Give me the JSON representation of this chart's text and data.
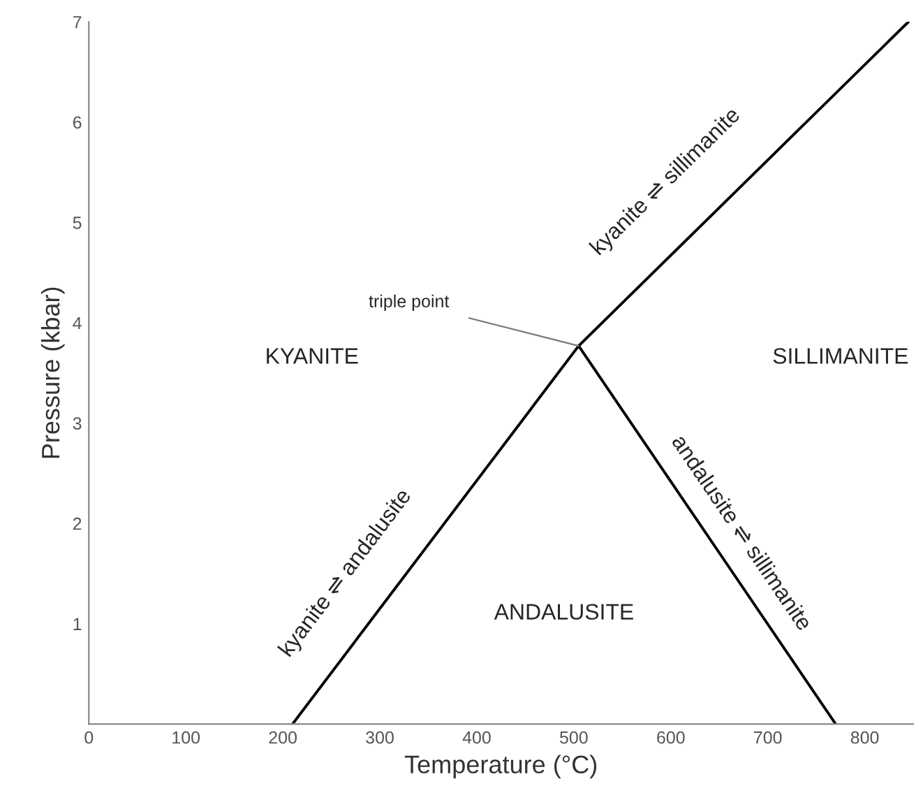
{
  "chart_data": {
    "type": "line",
    "xlabel": "Temperature (°C)",
    "ylabel": "Pressure (kbar)",
    "xlim": [
      0,
      850
    ],
    "ylim": [
      0,
      7
    ],
    "xticks": [
      0,
      100,
      200,
      300,
      400,
      500,
      600,
      700,
      800
    ],
    "yticks": [
      1,
      2,
      3,
      4,
      5,
      6,
      7
    ],
    "series": [
      {
        "color": "#000000",
        "x": [
          210,
          505,
          770,
          null,
          505,
          845
        ],
        "values": [
          0,
          3.77,
          0,
          null,
          3.77,
          7
        ]
      }
    ],
    "annotations": [
      "kyanite ⇌ andalusite",
      "andalusite ⇌ sillimanite",
      "kyanite ⇌ sillimanite",
      {
        "text": "triple point",
        "x": 505,
        "y": 3.77
      },
      "KYANITE",
      "SILLIMANITE",
      "ANDALUSITE"
    ],
    "grid": false,
    "legend": false,
    "marker": "none",
    "line_style": "solid"
  }
}
